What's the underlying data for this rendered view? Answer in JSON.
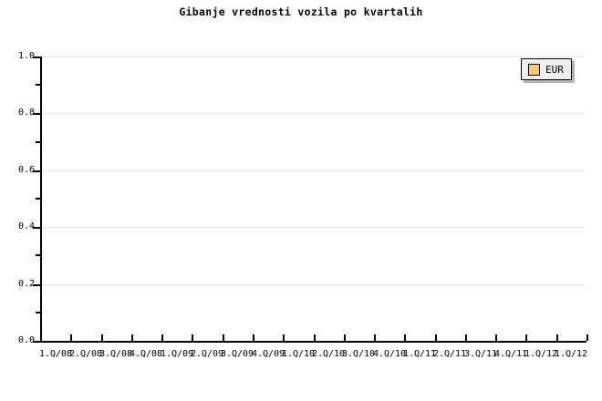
{
  "title": "Gibanje vrednosti vozila po kvartalih",
  "legend": {
    "position": "top-right",
    "items": [
      {
        "label": "EUR",
        "swatch_color": "#F9C96E"
      }
    ]
  },
  "axes": {
    "y_tick_labels": [
      "1.0",
      "0.8",
      "0.6",
      "0.4",
      "0.2",
      "0.0"
    ],
    "x_tick_labels": [
      "1.Q/08",
      "2.Q/08",
      "3.Q/08",
      "4.Q/08",
      "1.Q/09",
      "2.Q/09",
      "3.Q/09",
      "4.Q/09",
      "1.Q/10",
      "2.Q/10",
      "3.Q/10",
      "4.Q/10",
      "1.Q/11",
      "2.Q/11",
      "3.Q/11",
      "4.Q/11",
      "1.Q/12",
      "1.Q/12"
    ]
  },
  "colors": {
    "background": "#FFFFFF",
    "text": "#000000",
    "axis": "#000000",
    "gridline": "#E0E0E0",
    "legend_background": "#EEEEEE",
    "legend_border": "#000000",
    "legend_shadow": "#B3B3B3",
    "series_eur": "#F9C96E"
  },
  "chart_data": {
    "type": "line",
    "title": "Gibanje vrednosti vozila po kvartalih",
    "categories": [
      "1.Q/08",
      "2.Q/08",
      "3.Q/08",
      "4.Q/08",
      "1.Q/09",
      "2.Q/09",
      "3.Q/09",
      "4.Q/09",
      "1.Q/10",
      "2.Q/10",
      "3.Q/10",
      "4.Q/10",
      "1.Q/11",
      "2.Q/11",
      "3.Q/11",
      "4.Q/11",
      "1.Q/12",
      "1.Q/12"
    ],
    "series": [
      {
        "name": "EUR",
        "color": "#F9C96E",
        "values": []
      }
    ],
    "xlabel": "",
    "ylabel": "",
    "ylim": [
      0.0,
      1.0
    ],
    "y_tick_step": 0.2,
    "y_minor_tick_step": 0.1,
    "grid": true,
    "legend_position": "top-right"
  }
}
